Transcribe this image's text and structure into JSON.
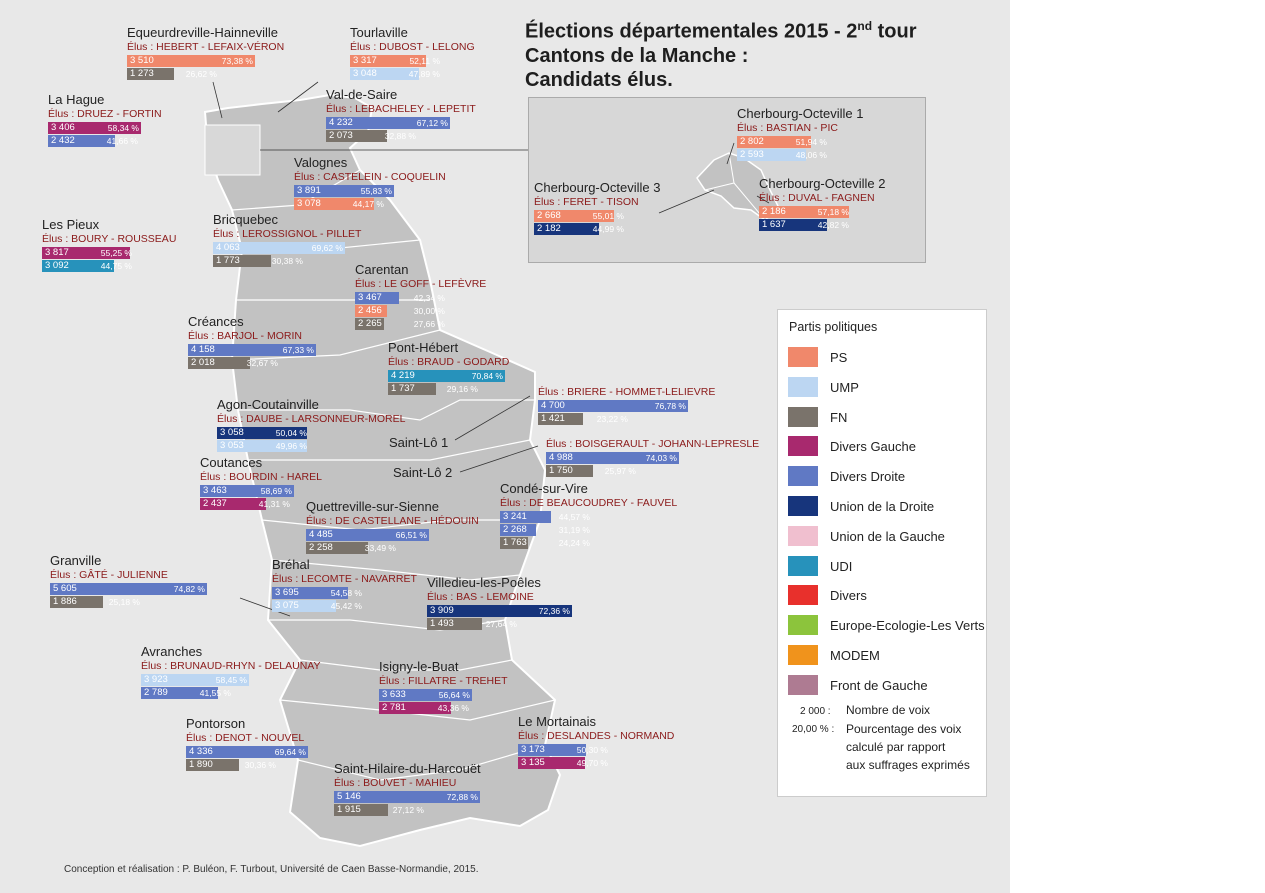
{
  "title": {
    "line1_prefix": "Élections départementales 2015 - 2",
    "line1_sup": "nd",
    "line1_suffix": " tour",
    "line2": "Cantons de la Manche :",
    "line3": "Candidats élus."
  },
  "parties": {
    "PS": "#f0886b",
    "UMP": "#bcd6f2",
    "FN": "#7a736b",
    "DVG": "#a8296e",
    "DVD": "#6079c4",
    "UD": "#17357c",
    "UG": "#f0bfcf",
    "UDI": "#2792bb",
    "DIV": "#e8302c",
    "EELV": "#8cc43c",
    "MODEM": "#f0931c",
    "FG": "#ae7b92"
  },
  "cantons": [
    {
      "id": "equeurdreville",
      "name": "Equeurdreville-Hainneville",
      "elus": "Élus : HEBERT - LEFAIX-VÉRON",
      "results": [
        {
          "party": "PS",
          "votes": "3 510",
          "pct": "73,38 %",
          "share": 73.38
        },
        {
          "party": "FN",
          "votes": "1 273",
          "pct": "26,62 %",
          "share": 26.62
        }
      ]
    },
    {
      "id": "tourlaville",
      "name": "Tourlaville",
      "elus": "Élus : DUBOST - LELONG",
      "results": [
        {
          "party": "PS",
          "votes": "3 317",
          "pct": "52,11 %",
          "share": 52.11
        },
        {
          "party": "UMP",
          "votes": "3 048",
          "pct": "47,89 %",
          "share": 47.89
        }
      ]
    },
    {
      "id": "la-hague",
      "name": "La Hague",
      "elus": "Élus : DRUEZ - FORTIN",
      "results": [
        {
          "party": "DVG",
          "votes": "3 406",
          "pct": "58,34 %",
          "share": 58.34
        },
        {
          "party": "DVD",
          "votes": "2 432",
          "pct": "41,66 %",
          "share": 41.66
        }
      ]
    },
    {
      "id": "val-de-saire",
      "name": "Val-de-Saire",
      "elus": "Élus : LEBACHELEY - LEPETIT",
      "results": [
        {
          "party": "DVD",
          "votes": "4 232",
          "pct": "67,12 %",
          "share": 67.12
        },
        {
          "party": "FN",
          "votes": "2 073",
          "pct": "32,88 %",
          "share": 32.88
        }
      ]
    },
    {
      "id": "valognes",
      "name": "Valognes",
      "elus": "Élus : CASTELEIN - COQUELIN",
      "results": [
        {
          "party": "DVD",
          "votes": "3 891",
          "pct": "55,83 %",
          "share": 55.83
        },
        {
          "party": "PS",
          "votes": "3 078",
          "pct": "44,17 %",
          "share": 44.17
        }
      ]
    },
    {
      "id": "les-pieux",
      "name": "Les Pieux",
      "elus": "Élus : BOURY - ROUSSEAU",
      "results": [
        {
          "party": "DVG",
          "votes": "3 817",
          "pct": "55,25 %",
          "share": 55.25
        },
        {
          "party": "UDI",
          "votes": "3 092",
          "pct": "44,75 %",
          "share": 44.75
        }
      ]
    },
    {
      "id": "bricquebec",
      "name": "Bricquebec",
      "elus": "Élus : LEROSSIGNOL - PILLET",
      "results": [
        {
          "party": "UMP",
          "votes": "4 063",
          "pct": "69,62 %",
          "share": 69.62
        },
        {
          "party": "FN",
          "votes": "1 773",
          "pct": "30,38 %",
          "share": 30.38
        }
      ]
    },
    {
      "id": "carentan",
      "name": "Carentan",
      "elus": "Élus : LE GOFF - LEFÈVRE",
      "results": [
        {
          "party": "DVD",
          "votes": "3 467",
          "pct": "42,34 %",
          "share": 42.34
        },
        {
          "party": "PS",
          "votes": "2 456",
          "pct": "30,00 %",
          "share": 30.0
        },
        {
          "party": "FN",
          "votes": "2 265",
          "pct": "27,66 %",
          "share": 27.66
        }
      ]
    },
    {
      "id": "creances",
      "name": "Créances",
      "elus": "Élus : BARJOL - MORIN",
      "results": [
        {
          "party": "DVD",
          "votes": "4 158",
          "pct": "67,33 %",
          "share": 67.33
        },
        {
          "party": "FN",
          "votes": "2 018",
          "pct": "32,67 %",
          "share": 32.67
        }
      ]
    },
    {
      "id": "pont-hebert",
      "name": "Pont-Hébert",
      "elus": "Élus : BRAUD - GODARD",
      "results": [
        {
          "party": "UDI",
          "votes": "4 219",
          "pct": "70,84 %",
          "share": 70.84
        },
        {
          "party": "FN",
          "votes": "1 737",
          "pct": "29,16 %",
          "share": 29.16
        }
      ]
    },
    {
      "id": "saint-lo-1",
      "name": "",
      "elus": "Élus : BRIERE - HOMMET-LELIEVRE",
      "results": [
        {
          "party": "DVD",
          "votes": "4 700",
          "pct": "76,78 %",
          "share": 76.78
        },
        {
          "party": "FN",
          "votes": "1 421",
          "pct": "23,22 %",
          "share": 23.22
        }
      ]
    },
    {
      "id": "agon",
      "name": "Agon-Coutainville",
      "elus": "Élus : DAUBE - LARSONNEUR-MOREL",
      "results": [
        {
          "party": "UD",
          "votes": "3 058",
          "pct": "50,04 %",
          "share": 50.04
        },
        {
          "party": "UMP",
          "votes": "3 053",
          "pct": "49,96 %",
          "share": 49.96
        }
      ]
    },
    {
      "id": "saint-lo-2",
      "name": "",
      "elus": "Élus : BOISGERAULT - JOHANN-LEPRESLE",
      "results": [
        {
          "party": "DVD",
          "votes": "4 988",
          "pct": "74,03 %",
          "share": 74.03
        },
        {
          "party": "FN",
          "votes": "1 750",
          "pct": "25,97 %",
          "share": 25.97
        }
      ]
    },
    {
      "id": "coutances",
      "name": "Coutances",
      "elus": "Élus : BOURDIN - HAREL",
      "results": [
        {
          "party": "DVD",
          "votes": "3 463",
          "pct": "58,69 %",
          "share": 58.69
        },
        {
          "party": "DVG",
          "votes": "2 437",
          "pct": "41,31 %",
          "share": 41.31
        }
      ]
    },
    {
      "id": "conde",
      "name": "Condé-sur-Vire",
      "elus": "Élus : DE BEAUCOUDREY - FAUVEL",
      "results": [
        {
          "party": "DVD",
          "votes": "3 241",
          "pct": "44,57 %",
          "share": 44.57
        },
        {
          "party": "DVD",
          "votes": "2 268",
          "pct": "31,19 %",
          "share": 31.19
        },
        {
          "party": "FN",
          "votes": "1 763",
          "pct": "24,24 %",
          "share": 24.24
        }
      ]
    },
    {
      "id": "quettreville",
      "name": "Quettreville-sur-Sienne",
      "elus": "Élus : DE CASTELLANE - HÉDOUIN",
      "results": [
        {
          "party": "DVD",
          "votes": "4 485",
          "pct": "66,51 %",
          "share": 66.51
        },
        {
          "party": "FN",
          "votes": "2 258",
          "pct": "33,49 %",
          "share": 33.49
        }
      ]
    },
    {
      "id": "granville",
      "name": "Granville",
      "elus": "Élus : GÂTÉ - JULIENNE",
      "results": [
        {
          "party": "DVD",
          "votes": "5 605",
          "pct": "74,82 %",
          "share": 74.82
        },
        {
          "party": "FN",
          "votes": "1 886",
          "pct": "25,18 %",
          "share": 25.18
        }
      ]
    },
    {
      "id": "brehal",
      "name": "Bréhal",
      "elus": "Élus : LECOMTE - NAVARRET",
      "results": [
        {
          "party": "DVD",
          "votes": "3 695",
          "pct": "54,58 %",
          "share": 54.58
        },
        {
          "party": "UMP",
          "votes": "3 075",
          "pct": "45,42 %",
          "share": 45.42
        }
      ]
    },
    {
      "id": "villedieu",
      "name": "Villedieu-les-Poêles",
      "elus": "Élus : BAS - LEMOINE",
      "results": [
        {
          "party": "UD",
          "votes": "3 909",
          "pct": "72,36 %",
          "share": 72.36
        },
        {
          "party": "FN",
          "votes": "1 493",
          "pct": "27,64 %",
          "share": 27.64
        }
      ]
    },
    {
      "id": "avranches",
      "name": "Avranches",
      "elus": "Élus : BRUNAUD-RHYN - DELAUNAY",
      "results": [
        {
          "party": "UMP",
          "votes": "3 923",
          "pct": "58,45 %",
          "share": 58.45
        },
        {
          "party": "DVD",
          "votes": "2 789",
          "pct": "41,55 %",
          "share": 41.55
        }
      ]
    },
    {
      "id": "isigny",
      "name": "Isigny-le-Buat",
      "elus": "Élus : FILLATRE - TREHET",
      "results": [
        {
          "party": "DVD",
          "votes": "3 633",
          "pct": "56,64 %",
          "share": 56.64
        },
        {
          "party": "DVG",
          "votes": "2 781",
          "pct": "43,36 %",
          "share": 43.36
        }
      ]
    },
    {
      "id": "pontorson",
      "name": "Pontorson",
      "elus": "Élus : DENOT - NOUVEL",
      "results": [
        {
          "party": "DVD",
          "votes": "4 336",
          "pct": "69,64 %",
          "share": 69.64
        },
        {
          "party": "FN",
          "votes": "1 890",
          "pct": "30,36 %",
          "share": 30.36
        }
      ]
    },
    {
      "id": "mortainais",
      "name": "Le Mortainais",
      "elus": "Élus : DESLANDES - NORMAND",
      "results": [
        {
          "party": "DVD",
          "votes": "3 173",
          "pct": "50,30 %",
          "share": 50.3
        },
        {
          "party": "DVG",
          "votes": "3 135",
          "pct": "49,70 %",
          "share": 49.7
        }
      ]
    },
    {
      "id": "saint-hilaire",
      "name": "Saint-Hilaire-du-Harcouët",
      "elus": "Élus : BOUVET - MAHIEU",
      "results": [
        {
          "party": "DVD",
          "votes": "5 146",
          "pct": "72,88 %",
          "share": 72.88
        },
        {
          "party": "FN",
          "votes": "1 915",
          "pct": "27,12 %",
          "share": 27.12
        }
      ]
    },
    {
      "id": "cherbourg-1",
      "name": "Cherbourg-Octeville 1",
      "elus": "Élus : BASTIAN - PIC",
      "results": [
        {
          "party": "PS",
          "votes": "2 802",
          "pct": "51,94 %",
          "share": 51.94
        },
        {
          "party": "UMP",
          "votes": "2 593",
          "pct": "48,06 %",
          "share": 48.06
        }
      ]
    },
    {
      "id": "cherbourg-3",
      "name": "Cherbourg-Octeville 3",
      "elus": "Élus : FERET - TISON",
      "results": [
        {
          "party": "PS",
          "votes": "2 668",
          "pct": "55,01 %",
          "share": 55.01
        },
        {
          "party": "UD",
          "votes": "2 182",
          "pct": "44,99 %",
          "share": 44.99
        }
      ]
    },
    {
      "id": "cherbourg-2",
      "name": "Cherbourg-Octeville 2",
      "elus": "Élus : DUVAL - FAGNEN",
      "results": [
        {
          "party": "PS",
          "votes": "2 186",
          "pct": "57,18 %",
          "share": 57.18
        },
        {
          "party": "UD",
          "votes": "1 637",
          "pct": "42,82 %",
          "share": 42.82
        }
      ]
    }
  ],
  "map_labels": {
    "saint_lo_1": "Saint-Lô 1",
    "saint_lo_2": "Saint-Lô 2"
  },
  "legend": {
    "title": "Partis politiques",
    "items": [
      {
        "key": "PS",
        "label": "PS"
      },
      {
        "key": "UMP",
        "label": "UMP"
      },
      {
        "key": "FN",
        "label": "FN"
      },
      {
        "key": "DVG",
        "label": "Divers Gauche"
      },
      {
        "key": "DVD",
        "label": "Divers Droite"
      },
      {
        "key": "UD",
        "label": "Union de la Droite"
      },
      {
        "key": "UG",
        "label": "Union de la Gauche"
      },
      {
        "key": "UDI",
        "label": "UDI"
      },
      {
        "key": "DIV",
        "label": "Divers"
      },
      {
        "key": "EELV",
        "label": "Europe-Ecologie-Les Verts"
      },
      {
        "key": "MODEM",
        "label": "MODEM"
      },
      {
        "key": "FG",
        "label": "Front de Gauche"
      }
    ],
    "votes_example": "2 000 :",
    "votes_label": "Nombre de voix",
    "pct_example": "20,00 % :",
    "pct_label_1": "Pourcentage des voix",
    "pct_label_2": "calculé par rapport",
    "pct_label_3": "aux suffrages exprimés"
  },
  "credit": "Conception et réalisation : P. Buléon, F. Turbout, Université de Caen Basse-Normandie, 2015."
}
